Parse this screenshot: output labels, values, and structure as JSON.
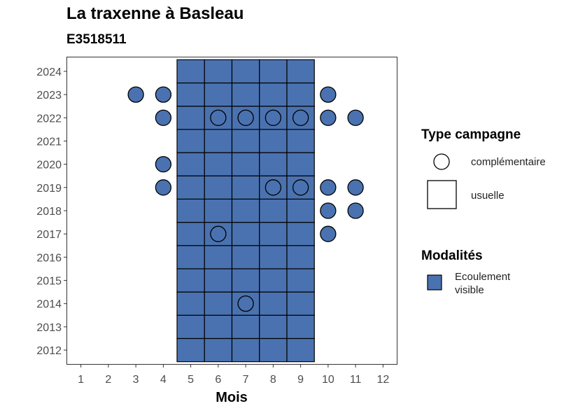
{
  "chart_data": {
    "type": "scatter",
    "title": "La traxenne à Basleau",
    "subtitle": "E3518511",
    "xlabel": "Mois",
    "ylabel": "",
    "xlim": [
      0.5,
      12.5
    ],
    "ylim": [
      2011.4,
      2024.6
    ],
    "x_ticks": [
      1,
      2,
      3,
      4,
      5,
      6,
      7,
      8,
      9,
      10,
      11,
      12
    ],
    "y_ticks": [
      2012,
      2013,
      2014,
      2015,
      2016,
      2017,
      2018,
      2019,
      2020,
      2021,
      2022,
      2023,
      2024
    ],
    "fill_color": "#4A72B0",
    "series": [
      {
        "type_campagne": "usuelle",
        "modalite": "Ecoulement visible",
        "shape": "square",
        "months": [
          5,
          6,
          7,
          8,
          9
        ],
        "years": [
          2012,
          2013,
          2014,
          2015,
          2016,
          2017,
          2018,
          2019,
          2020,
          2021,
          2022,
          2023,
          2024
        ]
      },
      {
        "type_campagne": "complémentaire",
        "modalite": "Ecoulement visible",
        "shape": "circle",
        "points": [
          {
            "x": 3,
            "y": 2023
          },
          {
            "x": 4,
            "y": 2023
          },
          {
            "x": 10,
            "y": 2023
          },
          {
            "x": 4,
            "y": 2022
          },
          {
            "x": 6,
            "y": 2022
          },
          {
            "x": 7,
            "y": 2022
          },
          {
            "x": 8,
            "y": 2022
          },
          {
            "x": 9,
            "y": 2022
          },
          {
            "x": 10,
            "y": 2022
          },
          {
            "x": 11,
            "y": 2022
          },
          {
            "x": 4,
            "y": 2020
          },
          {
            "x": 4,
            "y": 2019
          },
          {
            "x": 8,
            "y": 2019
          },
          {
            "x": 9,
            "y": 2019
          },
          {
            "x": 10,
            "y": 2019
          },
          {
            "x": 11,
            "y": 2019
          },
          {
            "x": 10,
            "y": 2018
          },
          {
            "x": 11,
            "y": 2018
          },
          {
            "x": 6,
            "y": 2017
          },
          {
            "x": 10,
            "y": 2017
          },
          {
            "x": 7,
            "y": 2014
          }
        ]
      }
    ],
    "legend": {
      "placement": "right",
      "type_title": "Type campagne",
      "type_items": [
        "complémentaire",
        "usuelle"
      ],
      "mod_title": "Modalités",
      "mod_items": [
        "Ecoulement visible"
      ]
    }
  }
}
